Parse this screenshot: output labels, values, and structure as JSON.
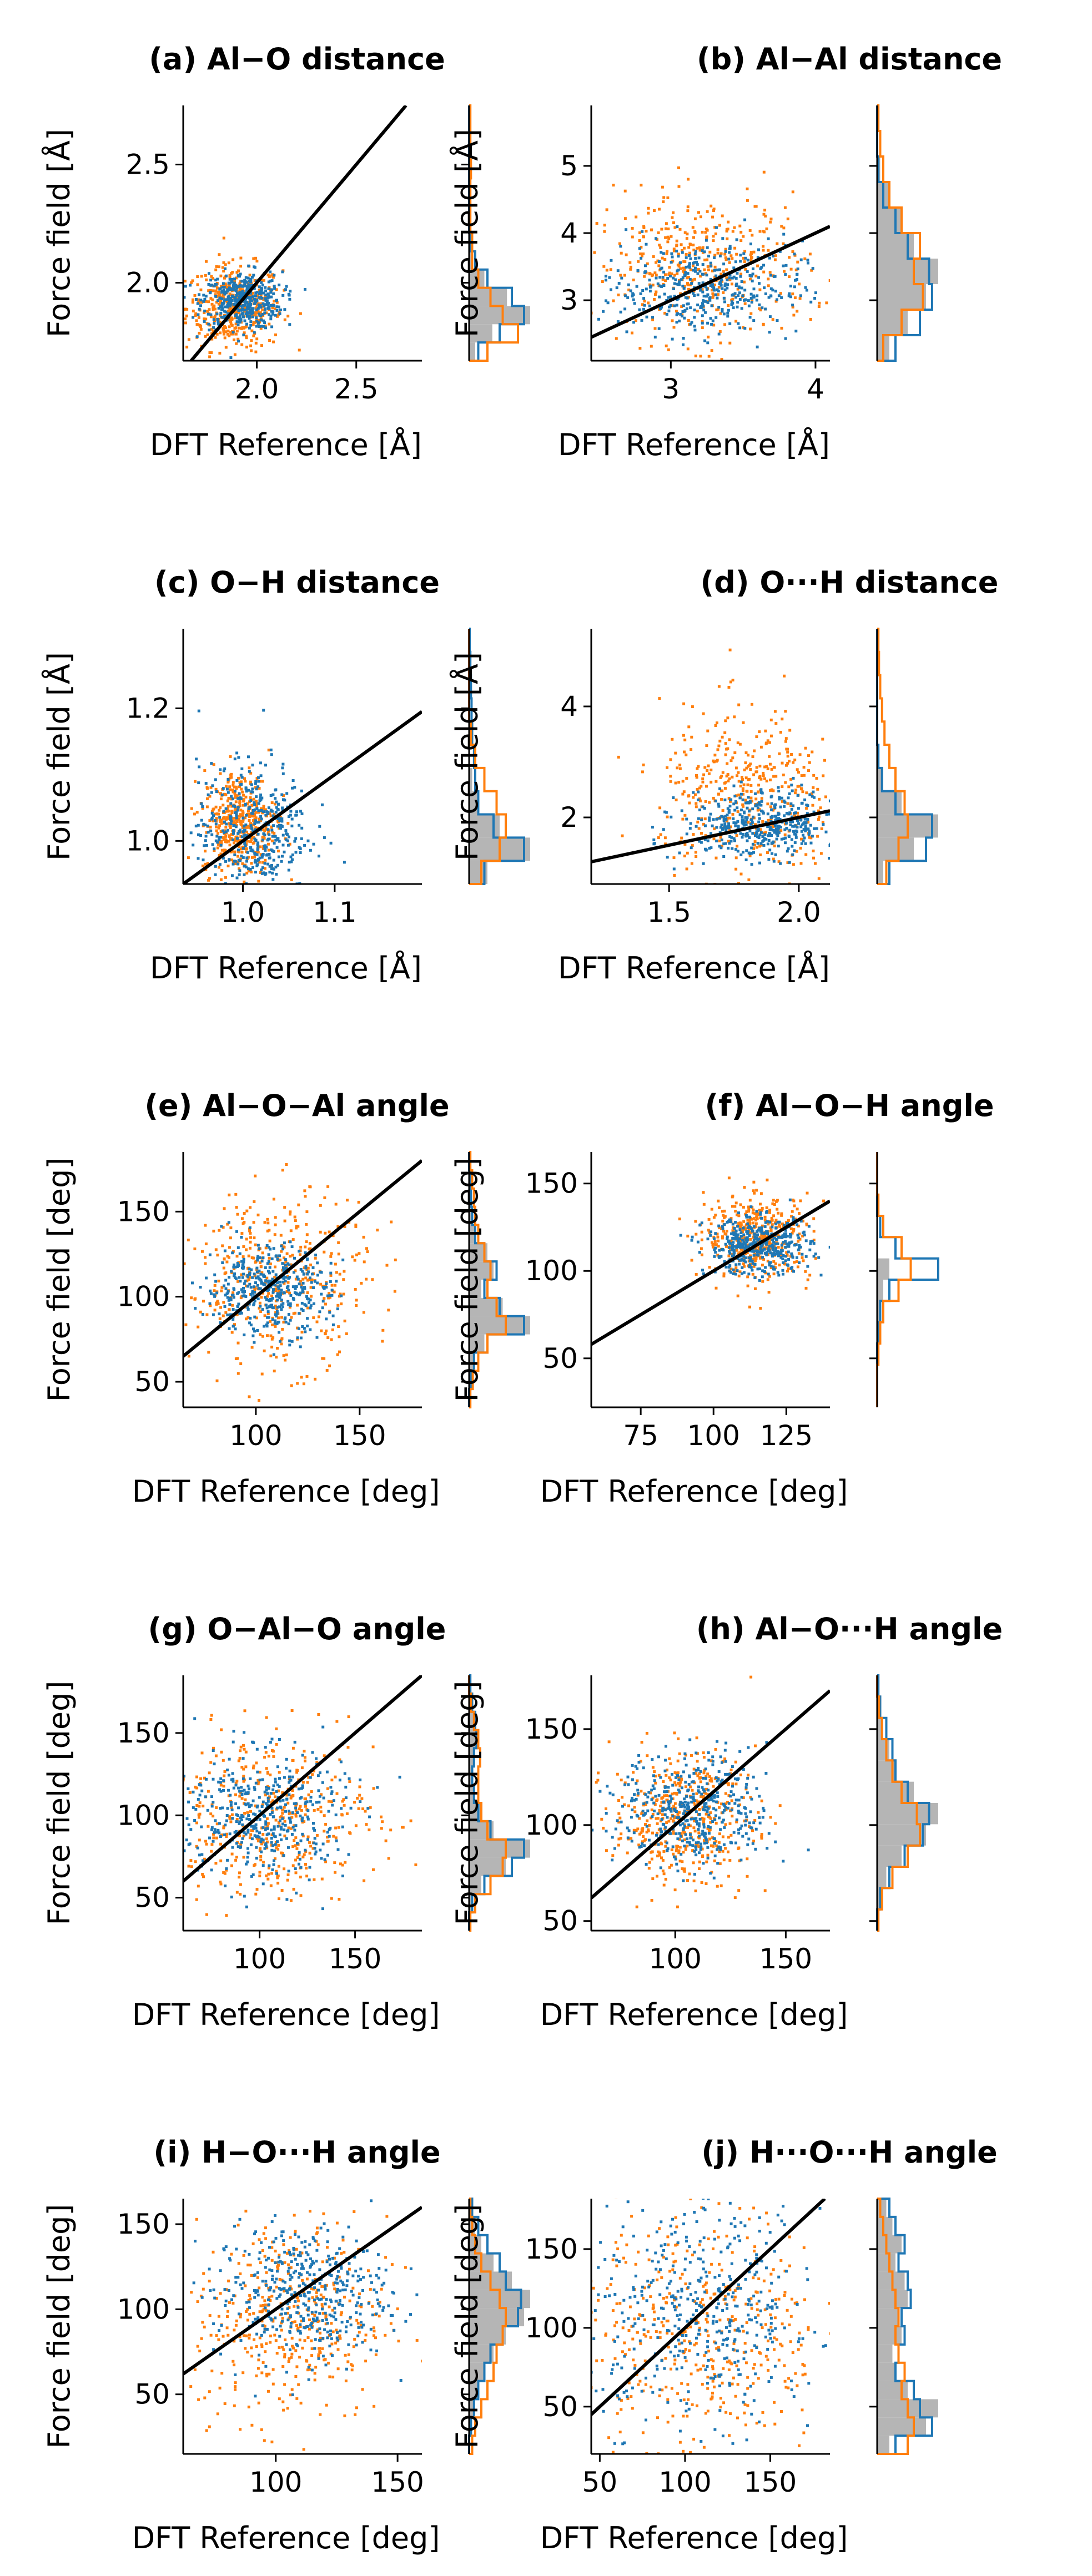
{
  "colors": {
    "series_a": "#1f77b4",
    "series_b": "#ff7f0e",
    "reference": "#000000",
    "reference_hist": "#b5b5b5"
  },
  "panels": [
    {
      "id": "a",
      "title": "(a) Al−O distance",
      "xlabel": "DFT Reference [Å]",
      "ylabel": "Force field [Å]",
      "xlim": [
        1.63,
        2.83
      ],
      "ylim": [
        1.67,
        2.75
      ],
      "xticks": [
        2.0,
        2.5
      ],
      "xtick_labels": [
        "2.0",
        "2.5"
      ],
      "yticks": [
        2.0,
        2.5
      ],
      "ytick_labels": [
        "2.0",
        "2.5"
      ],
      "scatter": {
        "a": {
          "cx": 1.92,
          "cy": 1.93,
          "sx": 0.1,
          "sy": 0.06
        },
        "b": {
          "cx": 1.88,
          "cy": 1.9,
          "sx": 0.12,
          "sy": 0.09
        }
      },
      "hist": {
        "ref": [
          0.1,
          0.38,
          1.0,
          0.62,
          0.25,
          0.05,
          0.0,
          0.0,
          0.0,
          0.0,
          0.0,
          0.0,
          0.0,
          0.0
        ],
        "a": [
          0.15,
          0.5,
          0.9,
          0.7,
          0.3,
          0.1,
          0.02,
          0.0,
          0.0,
          0.0,
          0.0,
          0.0,
          0.0,
          0.0
        ],
        "b": [
          0.3,
          0.8,
          0.55,
          0.35,
          0.15,
          0.05,
          0.05,
          0.02,
          0.02,
          0.02,
          0.03,
          0.02,
          0.02,
          0.02
        ]
      }
    },
    {
      "id": "b",
      "title": "(b) Al−Al distance",
      "xlabel": "DFT Reference [Å]",
      "ylabel": "Force field [Å]",
      "xlim": [
        2.45,
        4.1
      ],
      "ylim": [
        2.1,
        5.9
      ],
      "xticks": [
        3,
        4
      ],
      "xtick_labels": [
        "3",
        "4"
      ],
      "yticks": [
        3,
        4,
        5
      ],
      "ytick_labels": [
        "3",
        "4",
        "5"
      ],
      "scatter": {
        "a": {
          "cx": 3.2,
          "cy": 3.2,
          "sx": 0.35,
          "sy": 0.35
        },
        "b": {
          "cx": 3.2,
          "cy": 3.5,
          "sx": 0.38,
          "sy": 0.55
        }
      },
      "hist": {
        "ref": [
          0.2,
          0.5,
          0.8,
          1.0,
          0.6,
          0.4,
          0.2,
          0.05,
          0.0,
          0.0
        ],
        "a": [
          0.3,
          0.7,
          0.9,
          0.85,
          0.5,
          0.3,
          0.1,
          0.02,
          0.0,
          0.0
        ],
        "b": [
          0.1,
          0.4,
          0.75,
          0.6,
          0.7,
          0.4,
          0.2,
          0.1,
          0.05,
          0.02
        ]
      }
    },
    {
      "id": "c",
      "title": "(c) O−H distance",
      "xlabel": "DFT Reference [Å]",
      "ylabel": "Force field [Å]",
      "xlim": [
        0.935,
        1.195
      ],
      "ylim": [
        0.935,
        1.32
      ],
      "xticks": [
        1.0,
        1.1
      ],
      "xtick_labels": [
        "1.0",
        "1.1"
      ],
      "yticks": [
        1.0,
        1.2
      ],
      "ytick_labels": [
        "1.0",
        "1.2"
      ],
      "scatter": {
        "a": {
          "cx": 1.01,
          "cy": 1.02,
          "sx": 0.03,
          "sy": 0.05
        },
        "b": {
          "cx": 0.995,
          "cy": 1.03,
          "sx": 0.02,
          "sy": 0.04
        }
      },
      "hist": {
        "ref": [
          0.3,
          1.0,
          0.5,
          0.15,
          0.05,
          0.0,
          0.0,
          0.0,
          0.0,
          0.0,
          0.0
        ],
        "a": [
          0.25,
          0.9,
          0.4,
          0.15,
          0.1,
          0.08,
          0.05,
          0.04,
          0.03,
          0.02,
          0.01
        ],
        "b": [
          0.2,
          0.5,
          0.6,
          0.45,
          0.25,
          0.1,
          0.03,
          0.0,
          0.0,
          0.0,
          0.0
        ]
      }
    },
    {
      "id": "d",
      "title": "(d) O···H distance",
      "xlabel": "DFT Reference [Å]",
      "ylabel": "Force field [Å]",
      "xlim": [
        1.2,
        2.12
      ],
      "ylim": [
        0.8,
        5.4
      ],
      "xticks": [
        1.5,
        2.0
      ],
      "xtick_labels": [
        "1.5",
        "2.0"
      ],
      "yticks": [
        2,
        4
      ],
      "ytick_labels": [
        "2",
        "4"
      ],
      "scatter": {
        "a": {
          "cx": 1.85,
          "cy": 1.9,
          "sx": 0.15,
          "sy": 0.3
        },
        "b": {
          "cx": 1.8,
          "cy": 2.4,
          "sx": 0.17,
          "sy": 0.8
        }
      },
      "hist": {
        "ref": [
          0.1,
          0.6,
          1.0,
          0.4,
          0.1,
          0.0,
          0.0,
          0.0,
          0.0,
          0.0,
          0.0
        ],
        "a": [
          0.2,
          0.8,
          0.9,
          0.3,
          0.08,
          0.02,
          0.0,
          0.0,
          0.0,
          0.0,
          0.0
        ],
        "b": [
          0.15,
          0.35,
          0.5,
          0.45,
          0.3,
          0.2,
          0.12,
          0.08,
          0.05,
          0.03,
          0.02
        ]
      }
    },
    {
      "id": "e",
      "title": "(e) Al−O−Al angle",
      "xlabel": "DFT Reference [deg]",
      "ylabel": "Force field [deg]",
      "xlim": [
        65,
        180
      ],
      "ylim": [
        35,
        185
      ],
      "xticks": [
        100,
        150
      ],
      "xtick_labels": [
        "100",
        "150"
      ],
      "yticks": [
        50,
        100,
        150
      ],
      "ytick_labels": [
        "50",
        "100",
        "150"
      ],
      "scatter": {
        "a": {
          "cx": 105,
          "cy": 105,
          "sx": 15,
          "sy": 13
        },
        "b": {
          "cx": 110,
          "cy": 110,
          "sx": 22,
          "sy": 25
        }
      },
      "hist": {
        "ref": [
          0.0,
          0.05,
          0.1,
          0.25,
          1.0,
          0.55,
          0.2,
          0.4,
          0.3,
          0.1,
          0.05,
          0.03,
          0.02,
          0.0
        ],
        "a": [
          0.0,
          0.03,
          0.08,
          0.3,
          0.9,
          0.5,
          0.25,
          0.45,
          0.25,
          0.1,
          0.05,
          0.03,
          0.02,
          0.0
        ],
        "b": [
          0.02,
          0.06,
          0.15,
          0.3,
          0.6,
          0.45,
          0.3,
          0.35,
          0.25,
          0.15,
          0.1,
          0.08,
          0.05,
          0.02
        ]
      }
    },
    {
      "id": "f",
      "title": "(f) Al−O−H angle",
      "xlabel": "DFT Reference [deg]",
      "ylabel": "Force field [deg]",
      "xlim": [
        58,
        140
      ],
      "ylim": [
        22,
        168
      ],
      "xticks": [
        75,
        100,
        125
      ],
      "xtick_labels": [
        "75",
        "100",
        "125"
      ],
      "yticks": [
        50,
        100,
        150
      ],
      "ytick_labels": [
        "50",
        "100",
        "150"
      ],
      "scatter": {
        "a": {
          "cx": 115,
          "cy": 115,
          "sx": 9,
          "sy": 8
        },
        "b": {
          "cx": 115,
          "cy": 120,
          "sx": 9,
          "sy": 12
        }
      },
      "hist": {
        "ref": [
          0.0,
          0.0,
          0.0,
          0.02,
          0.05,
          0.1,
          0.2,
          0.0,
          0.0,
          0.0,
          0.0,
          0.0
        ],
        "a": [
          0.0,
          0.0,
          0.0,
          0.02,
          0.05,
          0.2,
          1.0,
          0.3,
          0.05,
          0.0,
          0.0,
          0.0
        ],
        "b": [
          0.0,
          0.0,
          0.02,
          0.05,
          0.1,
          0.35,
          0.55,
          0.4,
          0.1,
          0.02,
          0.0,
          0.0
        ]
      }
    },
    {
      "id": "g",
      "title": "(g) O−Al−O angle",
      "xlabel": "DFT Reference [deg]",
      "ylabel": "Force field [deg]",
      "xlim": [
        60,
        185
      ],
      "ylim": [
        30,
        185
      ],
      "xticks": [
        100,
        150
      ],
      "xtick_labels": [
        "100",
        "150"
      ],
      "yticks": [
        50,
        100,
        150
      ],
      "ytick_labels": [
        "50",
        "100",
        "150"
      ],
      "scatter": {
        "a": {
          "cx": 100,
          "cy": 100,
          "sx": 22,
          "sy": 20
        },
        "b": {
          "cx": 105,
          "cy": 100,
          "sx": 28,
          "sy": 25
        }
      },
      "hist": {
        "ref": [
          0.0,
          0.05,
          0.2,
          0.6,
          1.0,
          0.4,
          0.2,
          0.1,
          0.05,
          0.1,
          0.15,
          0.1,
          0.05,
          0.0
        ],
        "a": [
          0.0,
          0.05,
          0.25,
          0.7,
          0.9,
          0.35,
          0.15,
          0.08,
          0.05,
          0.08,
          0.12,
          0.1,
          0.05,
          0.02
        ],
        "b": [
          0.02,
          0.1,
          0.35,
          0.55,
          0.6,
          0.3,
          0.2,
          0.15,
          0.15,
          0.18,
          0.15,
          0.08,
          0.03,
          0.0
        ]
      }
    },
    {
      "id": "h",
      "title": "(h) Al−O···H angle",
      "xlabel": "DFT Reference [deg]",
      "ylabel": "Force field [deg]",
      "xlim": [
        62,
        170
      ],
      "ylim": [
        45,
        178
      ],
      "xticks": [
        100,
        150
      ],
      "xtick_labels": [
        "100",
        "150"
      ],
      "yticks": [
        50,
        100,
        150
      ],
      "ytick_labels": [
        "50",
        "100",
        "150"
      ],
      "scatter": {
        "a": {
          "cx": 108,
          "cy": 108,
          "sx": 17,
          "sy": 15
        },
        "b": {
          "cx": 103,
          "cy": 105,
          "sx": 16,
          "sy": 17
        }
      },
      "hist": {
        "ref": [
          0.0,
          0.05,
          0.15,
          0.4,
          0.8,
          1.0,
          0.6,
          0.3,
          0.2,
          0.1,
          0.05,
          0.0
        ],
        "a": [
          0.0,
          0.05,
          0.2,
          0.45,
          0.75,
          0.85,
          0.5,
          0.3,
          0.25,
          0.15,
          0.05,
          0.02
        ],
        "b": [
          0.02,
          0.08,
          0.25,
          0.5,
          0.7,
          0.65,
          0.4,
          0.25,
          0.15,
          0.08,
          0.03,
          0.0
        ]
      }
    },
    {
      "id": "i",
      "title": "(i) H−O···H angle",
      "xlabel": "DFT Reference [deg]",
      "ylabel": "Force field [deg]",
      "xlim": [
        62,
        160
      ],
      "ylim": [
        15,
        165
      ],
      "xticks": [
        100,
        150
      ],
      "xtick_labels": [
        "100",
        "150"
      ],
      "yticks": [
        50,
        100,
        150
      ],
      "ytick_labels": [
        "50",
        "100",
        "150"
      ],
      "scatter": {
        "a": {
          "cx": 110,
          "cy": 110,
          "sx": 18,
          "sy": 20
        },
        "b": {
          "cx": 105,
          "cy": 95,
          "sx": 20,
          "sy": 30
        }
      },
      "hist": {
        "ref": [
          0.0,
          0.05,
          0.1,
          0.15,
          0.25,
          0.4,
          0.6,
          0.9,
          1.0,
          0.7,
          0.4,
          0.2,
          0.1,
          0.05
        ],
        "a": [
          0.0,
          0.03,
          0.08,
          0.15,
          0.25,
          0.35,
          0.55,
          0.8,
          0.85,
          0.6,
          0.5,
          0.3,
          0.15,
          0.05
        ],
        "b": [
          0.05,
          0.1,
          0.2,
          0.3,
          0.4,
          0.45,
          0.55,
          0.6,
          0.5,
          0.35,
          0.2,
          0.1,
          0.05,
          0.02
        ]
      }
    },
    {
      "id": "j",
      "title": "(j) H···O···H angle",
      "xlabel": "DFT Reference [deg]",
      "ylabel": "Force field [deg]",
      "xlim": [
        45,
        185
      ],
      "ylim": [
        20,
        182
      ],
      "xticks": [
        50,
        100,
        150
      ],
      "xtick_labels": [
        "50",
        "100",
        "150"
      ],
      "yticks": [
        50,
        100,
        150
      ],
      "ytick_labels": [
        "50",
        "100",
        "150"
      ],
      "scatter": {
        "a": {
          "cx": 110,
          "cy": 110,
          "sx": 35,
          "sy": 35
        },
        "b": {
          "cx": 110,
          "cy": 100,
          "sx": 35,
          "sy": 40
        }
      },
      "hist": {
        "ref": [
          0.2,
          0.8,
          1.0,
          0.5,
          0.3,
          0.25,
          0.4,
          0.35,
          0.5,
          0.45,
          0.3,
          0.4,
          0.25,
          0.15
        ],
        "a": [
          0.3,
          0.9,
          0.7,
          0.6,
          0.3,
          0.35,
          0.45,
          0.4,
          0.55,
          0.5,
          0.35,
          0.45,
          0.3,
          0.2
        ],
        "b": [
          0.5,
          0.6,
          0.5,
          0.4,
          0.45,
          0.35,
          0.3,
          0.35,
          0.3,
          0.25,
          0.2,
          0.15,
          0.1,
          0.05
        ]
      }
    }
  ],
  "chart_data": [
    {
      "type": "scatter",
      "title": "(a) Al−O distance",
      "xlabel": "DFT Reference [Å]",
      "ylabel": "Force field [Å]",
      "xlim": [
        1.63,
        2.83
      ],
      "ylim": [
        1.67,
        2.75
      ],
      "series": [
        {
          "name": "blue",
          "center": [
            1.92,
            1.93
          ]
        },
        {
          "name": "orange",
          "center": [
            1.88,
            1.9
          ]
        }
      ],
      "reference_line": "y = x"
    },
    {
      "type": "scatter",
      "title": "(b) Al−Al distance",
      "xlabel": "DFT Reference [Å]",
      "ylabel": "Force field [Å]",
      "xlim": [
        2.45,
        4.1
      ],
      "ylim": [
        2.1,
        5.9
      ],
      "series": [
        {
          "name": "blue",
          "center": [
            3.2,
            3.2
          ]
        },
        {
          "name": "orange",
          "center": [
            3.2,
            3.5
          ]
        }
      ],
      "reference_line": "y = x"
    },
    {
      "type": "scatter",
      "title": "(c) O−H distance",
      "xlabel": "DFT Reference [Å]",
      "ylabel": "Force field [Å]",
      "xlim": [
        0.935,
        1.195
      ],
      "ylim": [
        0.935,
        1.32
      ],
      "series": [
        {
          "name": "blue",
          "center": [
            1.01,
            1.02
          ]
        },
        {
          "name": "orange",
          "center": [
            0.995,
            1.03
          ]
        }
      ],
      "reference_line": "y = x"
    },
    {
      "type": "scatter",
      "title": "(d) O···H distance",
      "xlabel": "DFT Reference [Å]",
      "ylabel": "Force field [Å]",
      "xlim": [
        1.2,
        2.12
      ],
      "ylim": [
        0.8,
        5.4
      ],
      "series": [
        {
          "name": "blue",
          "center": [
            1.85,
            1.9
          ]
        },
        {
          "name": "orange",
          "center": [
            1.8,
            2.4
          ]
        }
      ],
      "reference_line": "y = x"
    },
    {
      "type": "scatter",
      "title": "(e) Al−O−Al angle",
      "xlabel": "DFT Reference [deg]",
      "ylabel": "Force field [deg]",
      "xlim": [
        65,
        180
      ],
      "ylim": [
        35,
        185
      ],
      "series": [
        {
          "name": "blue",
          "center": [
            105,
            105
          ]
        },
        {
          "name": "orange",
          "center": [
            110,
            110
          ]
        }
      ],
      "reference_line": "y = x"
    },
    {
      "type": "scatter",
      "title": "(f) Al−O−H angle",
      "xlabel": "DFT Reference [deg]",
      "ylabel": "Force field [deg]",
      "xlim": [
        58,
        140
      ],
      "ylim": [
        22,
        168
      ],
      "series": [
        {
          "name": "blue",
          "center": [
            115,
            115
          ]
        },
        {
          "name": "orange",
          "center": [
            115,
            120
          ]
        }
      ],
      "reference_line": "y = x"
    },
    {
      "type": "scatter",
      "title": "(g) O−Al−O angle",
      "xlabel": "DFT Reference [deg]",
      "ylabel": "Force field [deg]",
      "xlim": [
        60,
        185
      ],
      "ylim": [
        30,
        185
      ],
      "series": [
        {
          "name": "blue",
          "center": [
            100,
            100
          ]
        },
        {
          "name": "orange",
          "center": [
            105,
            100
          ]
        }
      ],
      "reference_line": "y = x"
    },
    {
      "type": "scatter",
      "title": "(h) Al−O···H angle",
      "xlabel": "DFT Reference [deg]",
      "ylabel": "Force field [deg]",
      "xlim": [
        62,
        170
      ],
      "ylim": [
        45,
        178
      ],
      "series": [
        {
          "name": "blue",
          "center": [
            108,
            108
          ]
        },
        {
          "name": "orange",
          "center": [
            103,
            105
          ]
        }
      ],
      "reference_line": "y = x"
    },
    {
      "type": "scatter",
      "title": "(i) H−O···H angle",
      "xlabel": "DFT Reference [deg]",
      "ylabel": "Force field [deg]",
      "xlim": [
        62,
        160
      ],
      "ylim": [
        15,
        165
      ],
      "series": [
        {
          "name": "blue",
          "center": [
            110,
            110
          ]
        },
        {
          "name": "orange",
          "center": [
            105,
            95
          ]
        }
      ],
      "reference_line": "y = x"
    },
    {
      "type": "scatter",
      "title": "(j) H···O···H angle",
      "xlabel": "DFT Reference [deg]",
      "ylabel": "Force field [deg]",
      "xlim": [
        45,
        185
      ],
      "ylim": [
        20,
        182
      ],
      "series": [
        {
          "name": "blue",
          "center": [
            110,
            110
          ]
        },
        {
          "name": "orange",
          "center": [
            110,
            100
          ]
        }
      ],
      "reference_line": "y = x"
    }
  ]
}
